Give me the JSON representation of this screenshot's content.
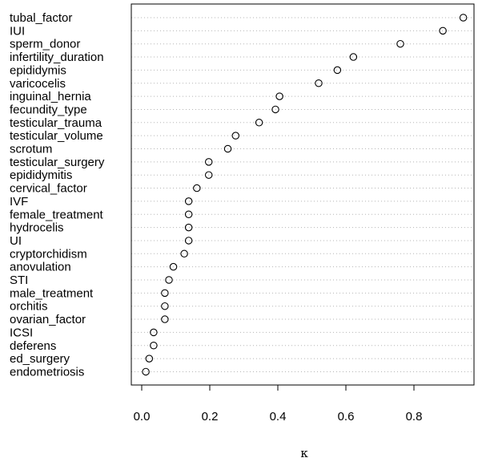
{
  "chart_data": {
    "type": "scatter",
    "title": "",
    "xlabel": "κ",
    "ylabel": "",
    "xlim": [
      -0.04,
      0.97
    ],
    "xticks": [
      0.0,
      0.2,
      0.4,
      0.6,
      0.8
    ],
    "xtick_labels": [
      "0.0",
      "0.2",
      "0.4",
      "0.6",
      "0.8"
    ],
    "grid": "dotted horizontal guide per category",
    "categories": [
      "tubal_factor",
      "IUI",
      "sperm_donor",
      "infertility_duration",
      "epididymis",
      "varicocelis",
      "inguinal_hernia",
      "fecundity_type",
      "testicular_trauma",
      "testicular_volume",
      "scrotum",
      "testicular_surgery",
      "epididymitis",
      "cervical_factor",
      "IVF",
      "female_treatment",
      "hydrocelis",
      "UI",
      "cryptorchidism",
      "anovulation",
      "STI",
      "male_treatment",
      "orchitis",
      "ovarian_factor",
      "ICSI",
      "deferens",
      "ed_surgery",
      "endometriosis"
    ],
    "values": [
      0.945,
      0.885,
      0.76,
      0.622,
      0.575,
      0.52,
      0.405,
      0.393,
      0.345,
      0.276,
      0.253,
      0.197,
      0.197,
      0.162,
      0.138,
      0.138,
      0.138,
      0.138,
      0.125,
      0.093,
      0.08,
      0.068,
      0.068,
      0.068,
      0.035,
      0.035,
      0.022,
      0.012
    ]
  }
}
